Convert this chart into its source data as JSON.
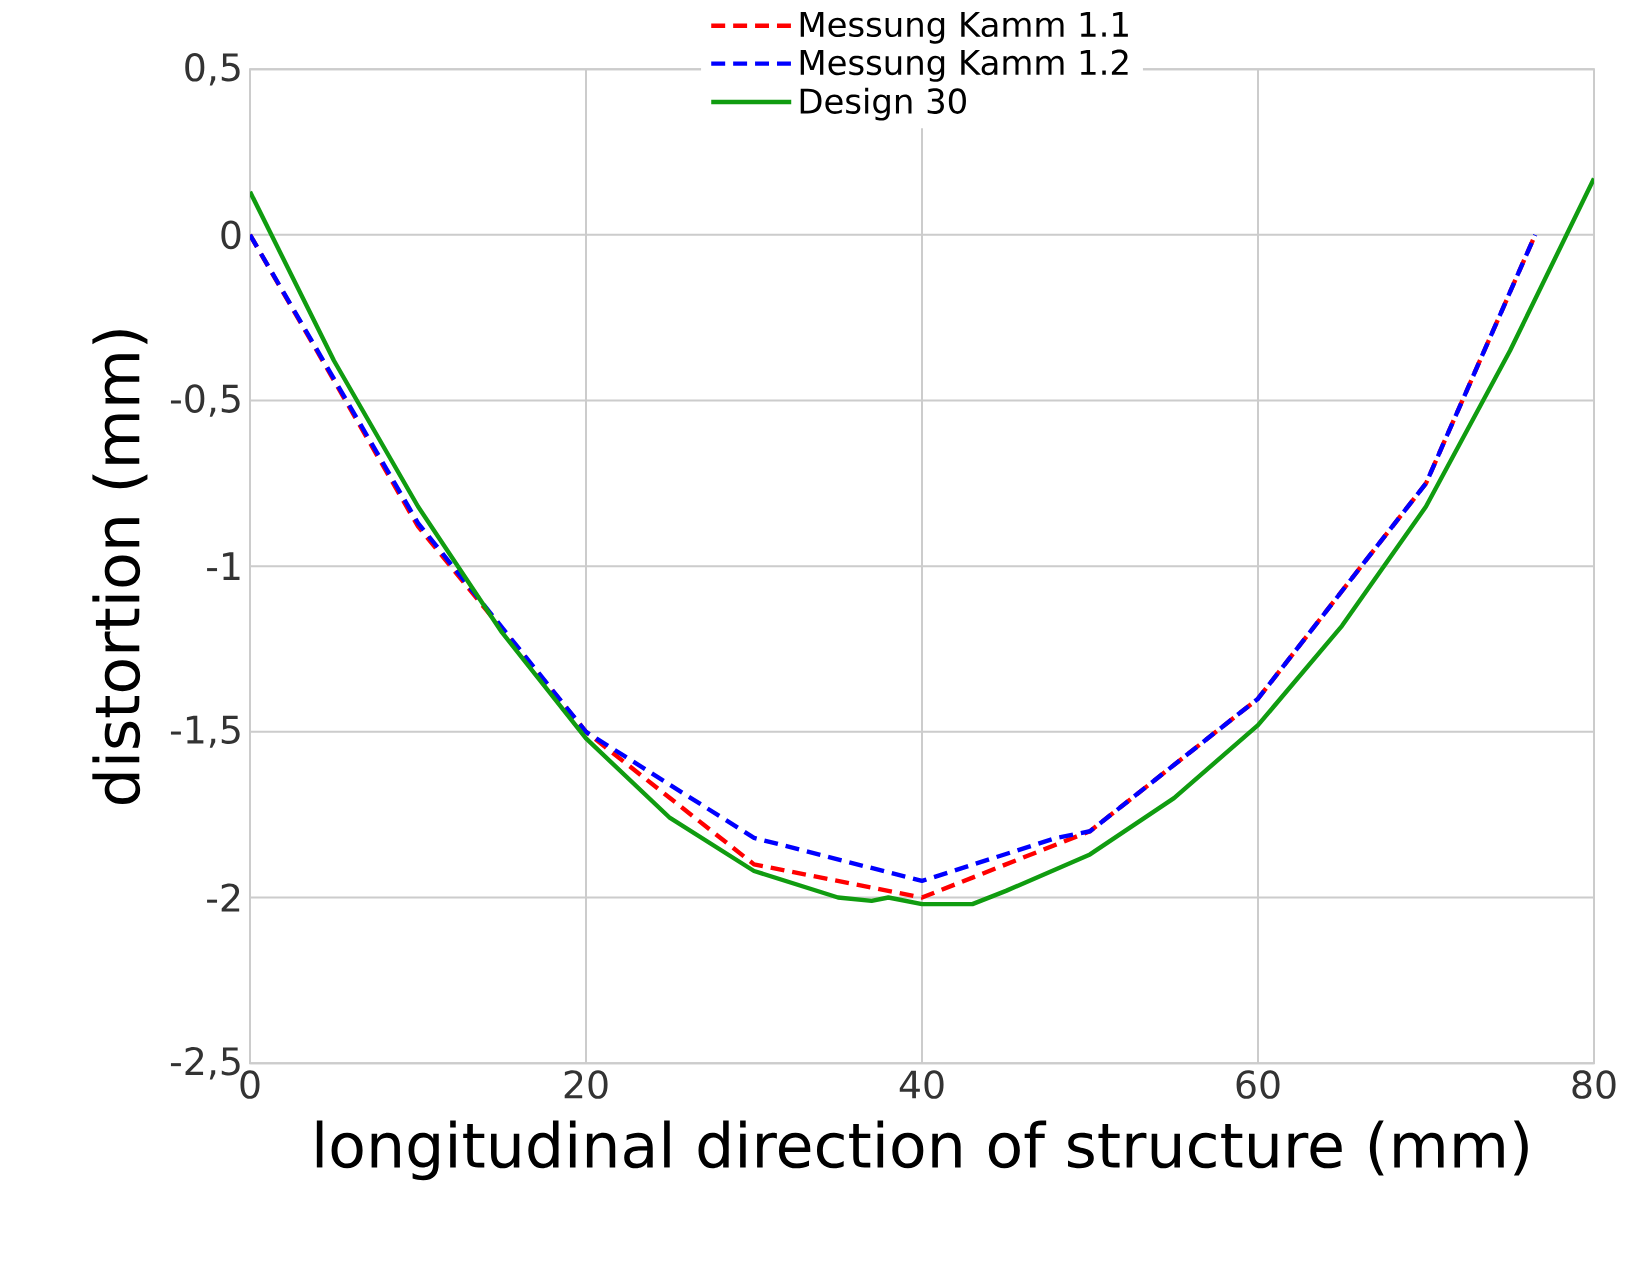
{
  "chart_data": {
    "type": "line",
    "xlabel": "longitudinal direction of structure (mm)",
    "ylabel": "distortion (mm)",
    "xlim": [
      0,
      80
    ],
    "ylim": [
      -2.5,
      0.5
    ],
    "xticks": [
      0,
      20,
      40,
      60,
      80
    ],
    "yticks": [
      {
        "value": 0.5,
        "label": "0,5"
      },
      0,
      {
        "value": -0.5,
        "label": "-0,5"
      },
      {
        "value": -1,
        "label": "-1"
      },
      {
        "value": -1.5,
        "label": "-1,5"
      },
      {
        "value": -2,
        "label": "-2"
      },
      {
        "value": -2.5,
        "label": "-2,5"
      }
    ],
    "grid": true,
    "legend": "top",
    "marker": "none",
    "series": [
      {
        "name": "Messung Kamm 1.1",
        "color": "#ff0000",
        "line_style": "dashed",
        "x": [
          0,
          10,
          20,
          30,
          40,
          48,
          50,
          60,
          70,
          76.5
        ],
        "values": [
          0,
          -0.88,
          -1.5,
          -1.9,
          -2.0,
          -1.84,
          -1.8,
          -1.4,
          -0.75,
          0
        ]
      },
      {
        "name": "Messung Kamm 1.2",
        "color": "#0000ff",
        "line_style": "dashed",
        "x": [
          0,
          10,
          20,
          30,
          40,
          48,
          50,
          60,
          70,
          76.5
        ],
        "values": [
          0,
          -0.87,
          -1.5,
          -1.82,
          -1.95,
          -1.82,
          -1.8,
          -1.4,
          -0.75,
          0
        ]
      },
      {
        "name": "Design 30",
        "color": "#109c10",
        "line_style": "solid",
        "x": [
          0,
          5,
          10,
          15,
          20,
          25,
          30,
          35,
          37,
          38,
          40,
          43,
          45,
          50,
          55,
          60,
          65,
          70,
          75,
          80
        ],
        "values": [
          0.13,
          -0.38,
          -0.82,
          -1.2,
          -1.52,
          -1.76,
          -1.92,
          -2.0,
          -2.01,
          -2.0,
          -2.02,
          -2.02,
          -1.98,
          -1.87,
          -1.7,
          -1.48,
          -1.18,
          -0.82,
          -0.35,
          0.17
        ]
      }
    ]
  }
}
